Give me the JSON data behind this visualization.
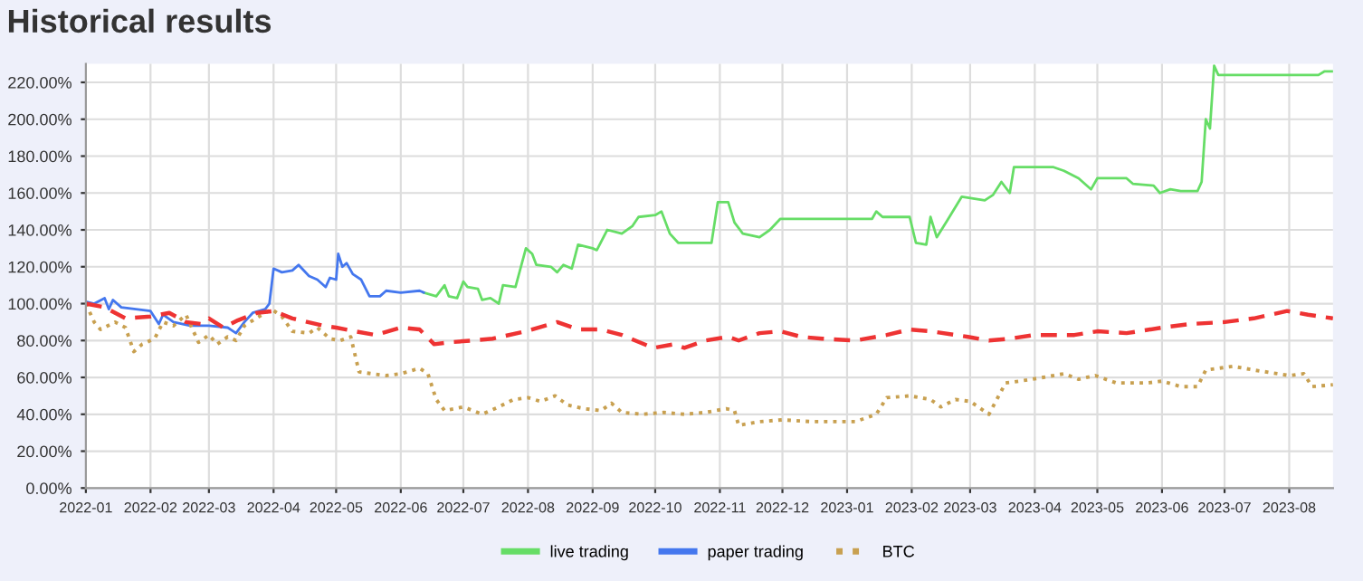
{
  "chart_data": {
    "type": "line",
    "title": "Historical results",
    "xlim": [
      "2022-01-01",
      "2023-08-22"
    ],
    "xticks": [
      {
        "value": "2022-01-01",
        "label": "2022-01"
      },
      {
        "value": "2022-02-01",
        "label": "2022-02"
      },
      {
        "value": "2022-03-01",
        "label": "2022-03"
      },
      {
        "value": "2022-04-01",
        "label": "2022-04"
      },
      {
        "value": "2022-05-01",
        "label": "2022-05"
      },
      {
        "value": "2022-06-01",
        "label": "2022-06"
      },
      {
        "value": "2022-07-01",
        "label": "2022-07"
      },
      {
        "value": "2022-08-01",
        "label": "2022-08"
      },
      {
        "value": "2022-09-01",
        "label": "2022-09"
      },
      {
        "value": "2022-10-01",
        "label": "2022-10"
      },
      {
        "value": "2022-11-01",
        "label": "2022-11"
      },
      {
        "value": "2022-12-01",
        "label": "2022-12"
      },
      {
        "value": "2023-01-01",
        "label": "2023-01"
      },
      {
        "value": "2023-02-01",
        "label": "2023-02"
      },
      {
        "value": "2023-03-01",
        "label": "2023-03"
      },
      {
        "value": "2023-04-01",
        "label": "2023-04"
      },
      {
        "value": "2023-05-01",
        "label": "2023-05"
      },
      {
        "value": "2023-06-01",
        "label": "2023-06"
      },
      {
        "value": "2023-07-01",
        "label": "2023-07"
      },
      {
        "value": "2023-08-01",
        "label": "2023-08"
      }
    ],
    "ylim": [
      0,
      230
    ],
    "yticks": [
      {
        "value": 0,
        "label": "0.00%"
      },
      {
        "value": 20,
        "label": "20.00%"
      },
      {
        "value": 40,
        "label": "40.00%"
      },
      {
        "value": 60,
        "label": "60.00%"
      },
      {
        "value": 80,
        "label": "80.00%"
      },
      {
        "value": 100,
        "label": "100.00%"
      },
      {
        "value": 120,
        "label": "120.00%"
      },
      {
        "value": 140,
        "label": "140.00%"
      },
      {
        "value": 160,
        "label": "160.00%"
      },
      {
        "value": 180,
        "label": "180.00%"
      },
      {
        "value": 200,
        "label": "200.00%"
      },
      {
        "value": 220,
        "label": "220.00%"
      }
    ],
    "grid": true,
    "legend": "bottom",
    "series": [
      {
        "name": "live trading",
        "color": "#66dd66",
        "line_style": "solid",
        "x": [
          "2022-06-12",
          "2022-06-18",
          "2022-06-22",
          "2022-06-24",
          "2022-06-28",
          "2022-07-01",
          "2022-07-03",
          "2022-07-08",
          "2022-07-10",
          "2022-07-14",
          "2022-07-18",
          "2022-07-20",
          "2022-07-26",
          "2022-07-31",
          "2022-08-03",
          "2022-08-05",
          "2022-08-12",
          "2022-08-15",
          "2022-08-18",
          "2022-08-22",
          "2022-08-25",
          "2022-09-01",
          "2022-09-03",
          "2022-09-08",
          "2022-09-15",
          "2022-09-20",
          "2022-09-23",
          "2022-10-01",
          "2022-10-04",
          "2022-10-08",
          "2022-10-12",
          "2022-10-28",
          "2022-10-31",
          "2022-11-05",
          "2022-11-08",
          "2022-11-12",
          "2022-11-20",
          "2022-11-25",
          "2022-11-30",
          "2023-01-13",
          "2023-01-15",
          "2023-01-18",
          "2023-01-31",
          "2023-02-03",
          "2023-02-08",
          "2023-02-10",
          "2023-02-13",
          "2023-02-18",
          "2023-02-25",
          "2023-03-08",
          "2023-03-12",
          "2023-03-16",
          "2023-03-20",
          "2023-03-22",
          "2023-04-10",
          "2023-04-15",
          "2023-04-22",
          "2023-04-28",
          "2023-05-01",
          "2023-05-15",
          "2023-05-18",
          "2023-05-28",
          "2023-05-31",
          "2023-06-05",
          "2023-06-10",
          "2023-06-18",
          "2023-06-20",
          "2023-06-22",
          "2023-06-24",
          "2023-06-26",
          "2023-06-28",
          "2023-08-15",
          "2023-08-18",
          "2023-08-22"
        ],
        "values": [
          106,
          104,
          110,
          104,
          103,
          112,
          109,
          108,
          102,
          103,
          100,
          110,
          109,
          130,
          127,
          121,
          120,
          117,
          121,
          119,
          132,
          130,
          129,
          140,
          138,
          142,
          147,
          148,
          150,
          138,
          133,
          133,
          155,
          155,
          144,
          138,
          136,
          140,
          146,
          146,
          150,
          147,
          147,
          133,
          132,
          147,
          136,
          145,
          158,
          156,
          159,
          166,
          160,
          174,
          174,
          172,
          168,
          162,
          168,
          168,
          165,
          164,
          160,
          162,
          161,
          161,
          166,
          200,
          195,
          229,
          224,
          224,
          226,
          226
        ]
      },
      {
        "name": "paper trading",
        "color": "#4477ee",
        "line_style": "solid",
        "x": [
          "2022-01-01",
          "2022-01-05",
          "2022-01-10",
          "2022-01-12",
          "2022-01-14",
          "2022-01-18",
          "2022-02-01",
          "2022-02-05",
          "2022-02-07",
          "2022-02-12",
          "2022-02-20",
          "2022-03-01",
          "2022-03-10",
          "2022-03-14",
          "2022-03-18",
          "2022-03-22",
          "2022-03-28",
          "2022-03-30",
          "2022-04-01",
          "2022-04-05",
          "2022-04-10",
          "2022-04-13",
          "2022-04-18",
          "2022-04-22",
          "2022-04-26",
          "2022-04-28",
          "2022-05-01",
          "2022-05-02",
          "2022-05-04",
          "2022-05-06",
          "2022-05-09",
          "2022-05-13",
          "2022-05-17",
          "2022-05-22",
          "2022-05-25",
          "2022-06-01",
          "2022-06-10",
          "2022-06-12"
        ],
        "values": [
          101,
          100,
          103,
          97,
          102,
          98,
          96,
          89,
          94,
          90,
          88,
          88,
          87,
          84,
          90,
          95,
          97,
          100,
          119,
          117,
          118,
          121,
          115,
          113,
          109,
          114,
          113,
          127,
          120,
          122,
          116,
          113,
          104,
          104,
          107,
          106,
          107,
          106
        ]
      },
      {
        "name": "BTC",
        "color": "#c8a050",
        "line_style": "dotted",
        "x": [
          "2022-01-01",
          "2022-01-05",
          "2022-01-08",
          "2022-01-15",
          "2022-01-20",
          "2022-01-24",
          "2022-01-28",
          "2022-02-03",
          "2022-02-07",
          "2022-02-12",
          "2022-02-18",
          "2022-02-24",
          "2022-03-01",
          "2022-03-05",
          "2022-03-10",
          "2022-03-14",
          "2022-03-18",
          "2022-03-25",
          "2022-03-31",
          "2022-04-05",
          "2022-04-10",
          "2022-04-18",
          "2022-04-22",
          "2022-04-28",
          "2022-05-03",
          "2022-05-08",
          "2022-05-12",
          "2022-05-18",
          "2022-05-25",
          "2022-06-01",
          "2022-06-10",
          "2022-06-14",
          "2022-06-18",
          "2022-06-22",
          "2022-07-01",
          "2022-07-10",
          "2022-07-18",
          "2022-07-25",
          "2022-08-01",
          "2022-08-07",
          "2022-08-14",
          "2022-08-20",
          "2022-08-28",
          "2022-09-05",
          "2022-09-10",
          "2022-09-15",
          "2022-09-25",
          "2022-10-05",
          "2022-10-15",
          "2022-10-25",
          "2022-11-04",
          "2022-11-08",
          "2022-11-10",
          "2022-11-20",
          "2022-12-01",
          "2022-12-15",
          "2023-01-05",
          "2023-01-15",
          "2023-01-20",
          "2023-01-31",
          "2023-02-10",
          "2023-02-15",
          "2023-02-22",
          "2023-03-01",
          "2023-03-10",
          "2023-03-18",
          "2023-03-25",
          "2023-04-05",
          "2023-04-15",
          "2023-04-22",
          "2023-04-30",
          "2023-05-10",
          "2023-05-25",
          "2023-06-01",
          "2023-06-10",
          "2023-06-18",
          "2023-06-22",
          "2023-07-05",
          "2023-07-15",
          "2023-08-01",
          "2023-08-08",
          "2023-08-12",
          "2023-08-22"
        ],
        "values": [
          100,
          90,
          86,
          90,
          87,
          74,
          78,
          81,
          90,
          88,
          94,
          79,
          83,
          78,
          82,
          80,
          88,
          93,
          97,
          93,
          85,
          84,
          87,
          81,
          80,
          82,
          63,
          62,
          61,
          62,
          65,
          62,
          48,
          42,
          44,
          40,
          44,
          48,
          49,
          47,
          50,
          45,
          43,
          42,
          46,
          41,
          40,
          41,
          40,
          41,
          43,
          42,
          34,
          36,
          37,
          36,
          36,
          40,
          49,
          50,
          48,
          44,
          48,
          47,
          40,
          57,
          58,
          60,
          62,
          59,
          61,
          57,
          57,
          58,
          55,
          55,
          64,
          66,
          64,
          61,
          62,
          55,
          56
        ]
      },
      {
        "color": "#ee3333",
        "line_style": "dashed",
        "x": [
          "2022-01-01",
          "2022-01-10",
          "2022-01-20",
          "2022-02-01",
          "2022-02-10",
          "2022-02-18",
          "2022-02-25",
          "2022-03-01",
          "2022-03-08",
          "2022-03-15",
          "2022-03-24",
          "2022-04-01",
          "2022-04-10",
          "2022-04-25",
          "2022-05-01",
          "2022-05-10",
          "2022-05-20",
          "2022-06-01",
          "2022-06-10",
          "2022-06-17",
          "2022-06-24",
          "2022-07-05",
          "2022-07-15",
          "2022-07-31",
          "2022-08-15",
          "2022-08-25",
          "2022-09-05",
          "2022-09-15",
          "2022-09-30",
          "2022-10-10",
          "2022-10-15",
          "2022-10-25",
          "2022-11-05",
          "2022-11-10",
          "2022-11-20",
          "2022-11-30",
          "2022-12-10",
          "2022-12-20",
          "2023-01-05",
          "2023-01-20",
          "2023-01-31",
          "2023-02-10",
          "2023-02-28",
          "2023-03-10",
          "2023-03-20",
          "2023-04-01",
          "2023-04-20",
          "2023-05-01",
          "2023-05-15",
          "2023-06-01",
          "2023-06-15",
          "2023-07-01",
          "2023-07-15",
          "2023-07-31",
          "2023-08-10",
          "2023-08-22"
        ],
        "values": [
          100,
          98,
          92,
          93,
          95,
          90,
          89,
          92,
          87,
          91,
          95,
          96,
          92,
          88,
          87,
          85,
          83,
          87,
          86,
          78,
          79,
          80,
          81,
          85,
          90,
          86,
          86,
          83,
          76,
          78,
          76,
          80,
          82,
          80,
          84,
          85,
          82,
          81,
          80,
          83,
          86,
          85,
          82,
          80,
          81,
          83,
          83,
          85,
          84,
          87,
          89,
          90,
          92,
          96,
          94,
          92
        ]
      }
    ]
  }
}
